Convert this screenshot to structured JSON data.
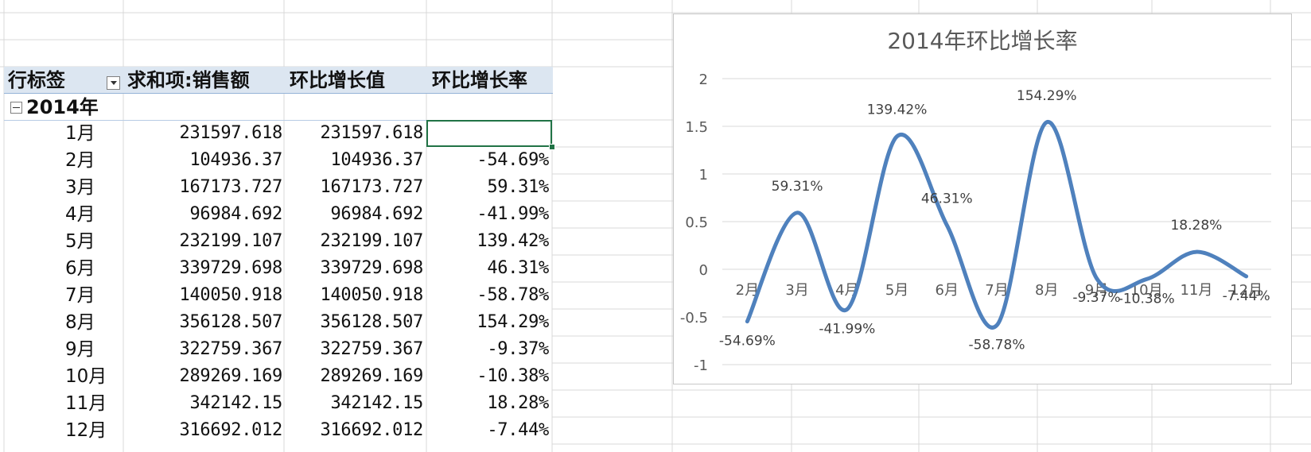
{
  "pivot": {
    "headers": {
      "row_label": "行标签",
      "sum_sales": "求和项:销售额",
      "mom_value": "环比增长值",
      "mom_rate": "环比增长率"
    },
    "year_label": "2014年",
    "rows": [
      {
        "month": "1月",
        "sales": "231597.618",
        "mom_value": "231597.618",
        "mom_rate": ""
      },
      {
        "month": "2月",
        "sales": "104936.37",
        "mom_value": "104936.37",
        "mom_rate": "-54.69%"
      },
      {
        "month": "3月",
        "sales": "167173.727",
        "mom_value": "167173.727",
        "mom_rate": "59.31%"
      },
      {
        "month": "4月",
        "sales": "96984.692",
        "mom_value": "96984.692",
        "mom_rate": "-41.99%"
      },
      {
        "month": "5月",
        "sales": "232199.107",
        "mom_value": "232199.107",
        "mom_rate": "139.42%"
      },
      {
        "month": "6月",
        "sales": "339729.698",
        "mom_value": "339729.698",
        "mom_rate": "46.31%"
      },
      {
        "month": "7月",
        "sales": "140050.918",
        "mom_value": "140050.918",
        "mom_rate": "-58.78%"
      },
      {
        "month": "8月",
        "sales": "356128.507",
        "mom_value": "356128.507",
        "mom_rate": "154.29%"
      },
      {
        "month": "9月",
        "sales": "322759.367",
        "mom_value": "322759.367",
        "mom_rate": "-9.37%"
      },
      {
        "month": "10月",
        "sales": "289269.169",
        "mom_value": "289269.169",
        "mom_rate": "-10.38%"
      },
      {
        "month": "11月",
        "sales": "342142.15",
        "mom_value": "342142.15",
        "mom_rate": "18.28%"
      },
      {
        "month": "12月",
        "sales": "316692.012",
        "mom_value": "316692.012",
        "mom_rate": "-7.44%"
      }
    ]
  },
  "colors": {
    "line": "#4f81bd",
    "header_fill": "#dce6f1",
    "grid": "#d9d9d9",
    "selection": "#217346"
  },
  "chart_data": {
    "type": "line",
    "title": "2014年环比增长率",
    "categories": [
      "2月",
      "3月",
      "4月",
      "5月",
      "6月",
      "7月",
      "8月",
      "9月",
      "10月",
      "11月",
      "12月"
    ],
    "values": [
      -0.5469,
      0.5931,
      -0.4199,
      1.3942,
      0.4631,
      -0.5878,
      1.5429,
      -0.0937,
      -0.1038,
      0.1828,
      -0.0744
    ],
    "data_labels": [
      "-54.69%",
      "59.31%",
      "-41.99%",
      "139.42%",
      "46.31%",
      "-58.78%",
      "154.29%",
      "-9.37%",
      "-10.38%",
      "18.28%",
      "-7.44%"
    ],
    "y_ticks": [
      "2",
      "1.5",
      "1",
      "0.5",
      "0",
      "-0.5",
      "-1"
    ],
    "ylim": [
      -1,
      2
    ],
    "smooth": true,
    "grid": true,
    "legend": false
  }
}
